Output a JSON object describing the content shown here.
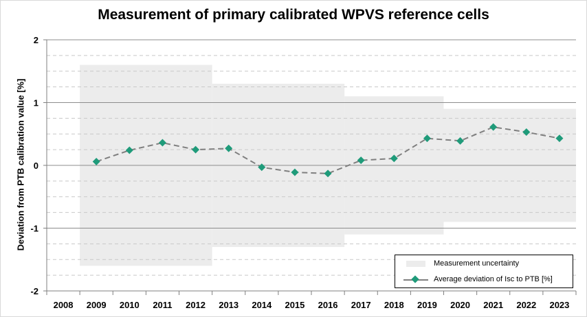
{
  "chart_data": {
    "type": "line",
    "title": "Measurement of primary calibrated WPVS reference cells",
    "xlabel": "",
    "ylabel": "Deviation from PTB calibration value [%]",
    "ylim": [
      -2,
      2
    ],
    "yticks": [
      "2",
      "1",
      "0",
      "-1",
      "-2"
    ],
    "categories": [
      "2008",
      "2009",
      "2010",
      "2011",
      "2012",
      "2013",
      "2014",
      "2015",
      "2016",
      "2017",
      "2018",
      "2019",
      "2020",
      "2021",
      "2022",
      "2023"
    ],
    "grid": "major solid, minor dashed",
    "uncertainty_band": {
      "name": "Measurement uncertainty",
      "color": "#ececec",
      "segments": [
        {
          "from": "2009",
          "to": "2012",
          "value": 1.6
        },
        {
          "from": "2013",
          "to": "2016",
          "value": 1.3
        },
        {
          "from": "2017",
          "to": "2019",
          "value": 1.1
        },
        {
          "from": "2020",
          "to": "2023",
          "value": 0.9
        }
      ]
    },
    "series": [
      {
        "name": "Average deviation of Isc to PTB [%]",
        "color": "#1f9b7a",
        "line_color": "#7f7f7f",
        "x": [
          "2009",
          "2010",
          "2011",
          "2012",
          "2013",
          "2014",
          "2015",
          "2016",
          "2017",
          "2018",
          "2019",
          "2020",
          "2021",
          "2022",
          "2023"
        ],
        "values": [
          0.06,
          0.24,
          0.36,
          0.25,
          0.27,
          -0.03,
          -0.11,
          -0.13,
          0.08,
          0.11,
          0.43,
          0.39,
          0.61,
          0.53,
          0.43
        ]
      }
    ],
    "legend_position": "bottom-right"
  }
}
